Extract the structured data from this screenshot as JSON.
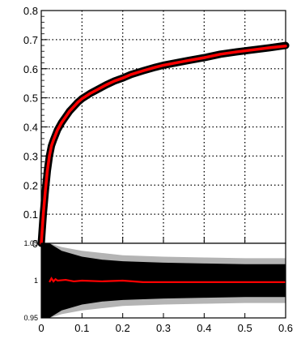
{
  "chart_data": [
    {
      "type": "line",
      "panel": "upper",
      "xlim": [
        0,
        0.6
      ],
      "ylim": [
        0,
        0.8
      ],
      "grid": true,
      "grid_style": "dotted",
      "x_ticks": [
        0,
        0.1,
        0.2,
        0.3,
        0.4,
        0.5,
        0.6
      ],
      "y_ticks": [
        0,
        0.1,
        0.2,
        0.3,
        0.4,
        0.5,
        0.6,
        0.7,
        0.8
      ],
      "y_tick_labels": [
        "0",
        "0.1",
        "0.2",
        "0.3",
        "0.4",
        "0.5",
        "0.6",
        "0.7",
        "0.8"
      ],
      "series": [
        {
          "style": "black markers",
          "color": "#000000",
          "x": [
            0,
            0.005,
            0.01,
            0.015,
            0.02,
            0.025,
            0.03,
            0.04,
            0.05,
            0.06,
            0.07,
            0.08,
            0.09,
            0.1,
            0.12,
            0.14,
            0.16,
            0.18,
            0.2,
            0.22,
            0.25,
            0.28,
            0.3,
            0.33,
            0.36,
            0.4,
            0.44,
            0.48,
            0.52,
            0.56,
            0.6
          ],
          "y": [
            0,
            0.1,
            0.18,
            0.25,
            0.3,
            0.335,
            0.355,
            0.39,
            0.415,
            0.435,
            0.455,
            0.47,
            0.485,
            0.497,
            0.515,
            0.53,
            0.545,
            0.558,
            0.568,
            0.58,
            0.593,
            0.605,
            0.612,
            0.62,
            0.628,
            0.638,
            0.65,
            0.658,
            0.665,
            0.672,
            0.68
          ]
        },
        {
          "style": "red line",
          "color": "#ff0000",
          "x": [
            0,
            0.005,
            0.01,
            0.015,
            0.02,
            0.025,
            0.03,
            0.04,
            0.05,
            0.06,
            0.07,
            0.08,
            0.09,
            0.1,
            0.12,
            0.14,
            0.16,
            0.18,
            0.2,
            0.22,
            0.25,
            0.28,
            0.3,
            0.33,
            0.36,
            0.4,
            0.44,
            0.48,
            0.52,
            0.56,
            0.6
          ],
          "y": [
            0,
            0.1,
            0.18,
            0.25,
            0.3,
            0.335,
            0.355,
            0.39,
            0.415,
            0.435,
            0.455,
            0.47,
            0.485,
            0.497,
            0.515,
            0.53,
            0.545,
            0.558,
            0.568,
            0.58,
            0.593,
            0.605,
            0.612,
            0.62,
            0.628,
            0.638,
            0.65,
            0.658,
            0.665,
            0.672,
            0.678
          ]
        }
      ]
    },
    {
      "type": "area",
      "panel": "lower-ratio",
      "xlim": [
        0,
        0.6
      ],
      "ylim": [
        0.95,
        1.05
      ],
      "grid": false,
      "x_ticks": [
        0,
        0.1,
        0.2,
        0.3,
        0.4,
        0.5,
        0.6
      ],
      "x_tick_labels": [
        "0",
        "0.1",
        "0.2",
        "0.3",
        "0.4",
        "0.5",
        "0.6"
      ],
      "y_ticks": [
        0.95,
        1,
        1.05
      ],
      "y_tick_labels": [
        "0.95",
        "1",
        "1.05"
      ],
      "band_outer": {
        "color": "#b4b4b4",
        "x": [
          0,
          0.02,
          0.05,
          0.1,
          0.15,
          0.2,
          0.3,
          0.4,
          0.5,
          0.6
        ],
        "upper": [
          1.05,
          1.05,
          1.045,
          1.04,
          1.037,
          1.034,
          1.032,
          1.031,
          1.03,
          1.03
        ],
        "lower": [
          0.95,
          0.95,
          0.955,
          0.96,
          0.963,
          0.966,
          0.968,
          0.969,
          0.97,
          0.97
        ]
      },
      "band_inner": {
        "color": "#000000",
        "x": [
          0,
          0.02,
          0.05,
          0.1,
          0.15,
          0.2,
          0.3,
          0.4,
          0.5,
          0.6
        ],
        "upper": [
          1.05,
          1.05,
          1.04,
          1.032,
          1.028,
          1.026,
          1.024,
          1.023,
          1.022,
          1.022
        ],
        "lower": [
          0.95,
          0.95,
          0.96,
          0.968,
          0.972,
          0.974,
          0.976,
          0.977,
          0.978,
          0.978
        ]
      },
      "ratio_line": {
        "color": "#ff0000",
        "x": [
          0.02,
          0.025,
          0.03,
          0.035,
          0.04,
          0.06,
          0.08,
          0.1,
          0.15,
          0.2,
          0.25,
          0.3,
          0.4,
          0.5,
          0.6
        ],
        "y": [
          0.998,
          1.003,
          0.999,
          1.002,
          1.0,
          1.001,
          0.999,
          1.0,
          0.999,
          1.0,
          0.998,
          0.998,
          0.998,
          0.998,
          0.998
        ]
      }
    }
  ]
}
